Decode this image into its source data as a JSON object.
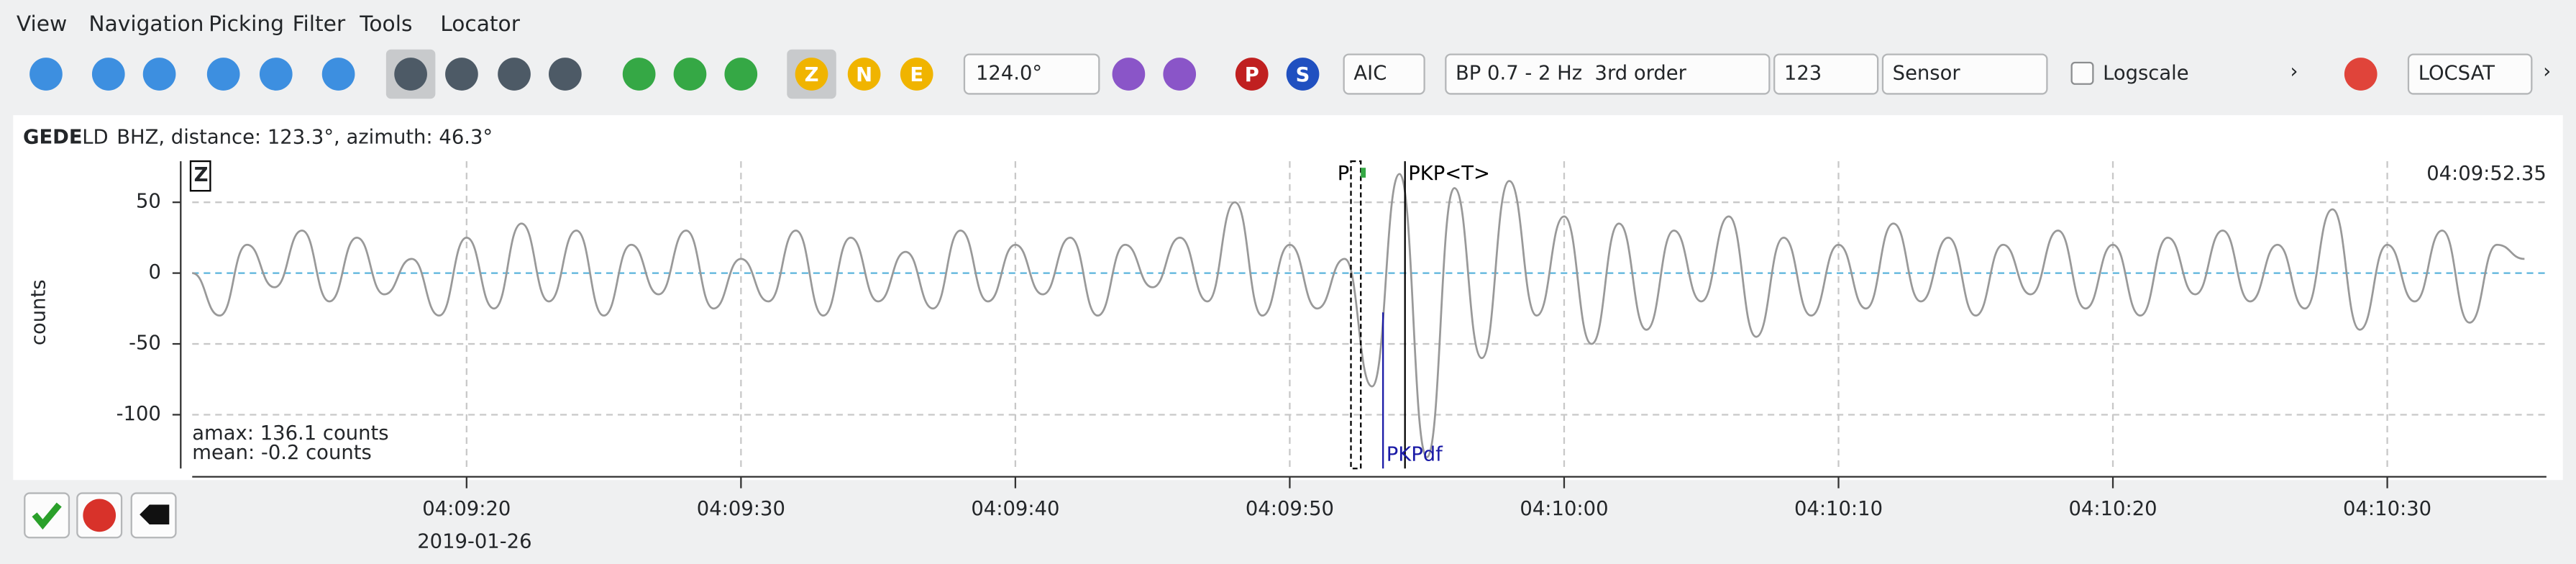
{
  "menu": [
    "View",
    "Navigation",
    "Picking",
    "Filter",
    "Tools",
    "Locator"
  ],
  "toolbar": {
    "angle": "124.0°",
    "picker": "AIC",
    "filter": "BP 0.7 - 2 Hz  3rd order",
    "channel": "123",
    "unit": "Sensor",
    "logscale": "Logscale",
    "locator": "LOCSAT",
    "component_buttons": [
      "Z",
      "N",
      "E"
    ],
    "phase_buttons": [
      "P",
      "S"
    ]
  },
  "trace": {
    "station": "GEDE",
    "network": "LD",
    "info": "BHZ, distance: 123.3°, azimuth: 46.3°",
    "component": "Z",
    "amax": "amax: 136.1 counts",
    "mean": "mean: -0.2 counts",
    "time_label": "04:09:52.35",
    "date": "2019-01-26"
  },
  "chart_data": {
    "type": "line",
    "y_label": "counts",
    "color": "#999999",
    "xlim": [
      10,
      95.8
    ],
    "ylim": [
      -138,
      79
    ],
    "yticks": [
      -100,
      -50,
      0,
      50
    ],
    "xticks": [
      {
        "value": 20,
        "label": "04:09:20"
      },
      {
        "value": 30,
        "label": "04:09:30"
      },
      {
        "value": 40,
        "label": "04:09:40"
      },
      {
        "value": 50,
        "label": "04:09:50"
      },
      {
        "value": 60,
        "label": "04:10:00"
      },
      {
        "value": 70,
        "label": "04:10:10"
      },
      {
        "value": 80,
        "label": "04:10:20"
      },
      {
        "value": 90,
        "label": "04:10:30"
      }
    ],
    "grid": true,
    "x": [
      10,
      11,
      12,
      13,
      14,
      15,
      16,
      17,
      18,
      19,
      20,
      21,
      22,
      23,
      24,
      25,
      26,
      27,
      28,
      29,
      30,
      31,
      32,
      33,
      34,
      35,
      36,
      37,
      38,
      39,
      40,
      41,
      42,
      43,
      44,
      45,
      46,
      47,
      48,
      49,
      50,
      51,
      52,
      53,
      54,
      55,
      56,
      57,
      58,
      59,
      60,
      61,
      62,
      63,
      64,
      65,
      66,
      67,
      68,
      69,
      70,
      71,
      72,
      73,
      74,
      75,
      76,
      77,
      78,
      79,
      80,
      81,
      82,
      83,
      84,
      85,
      86,
      87,
      88,
      89,
      90,
      91,
      92,
      93,
      94,
      95
    ],
    "values": [
      0,
      -30,
      20,
      -10,
      30,
      -20,
      25,
      -15,
      10,
      -30,
      25,
      -25,
      35,
      -20,
      30,
      -30,
      20,
      -15,
      30,
      -25,
      10,
      -20,
      30,
      -30,
      25,
      -20,
      15,
      -25,
      30,
      -20,
      20,
      -15,
      25,
      -30,
      20,
      -10,
      25,
      -20,
      50,
      -30,
      20,
      -25,
      10,
      -80,
      70,
      -130,
      60,
      -60,
      65,
      -30,
      40,
      -50,
      35,
      -40,
      30,
      -20,
      40,
      -45,
      25,
      -30,
      20,
      -25,
      35,
      -20,
      25,
      -30,
      20,
      -15,
      30,
      -25,
      20,
      -30,
      25,
      -15,
      30,
      -20,
      20,
      -25,
      45,
      -40,
      20,
      -20,
      30,
      -35,
      20,
      10
    ],
    "picks": [
      {
        "label": "P",
        "time": 52.35,
        "color": "#000000"
      },
      {
        "label": "PKP<T>",
        "time": 54.2,
        "color": "#000000"
      },
      {
        "label": "PKPdf",
        "time": 53.4,
        "color": "#1a1aa6"
      }
    ]
  }
}
